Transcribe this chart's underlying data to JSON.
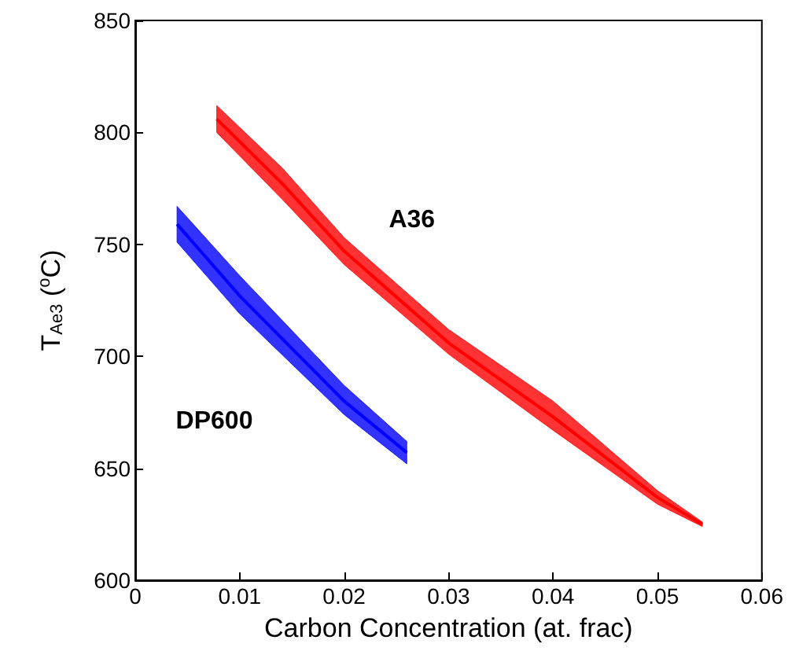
{
  "chart_data": {
    "type": "line",
    "xlabel": "Carbon Concentration (at. frac)",
    "ylabel": "T$_{Ae3}$ ($^{o}$C)",
    "xlim": [
      0,
      0.06
    ],
    "xticks": [
      0,
      0.01,
      0.02,
      0.03,
      0.04,
      0.05,
      0.06
    ],
    "ylim": [
      600,
      850
    ],
    "yticks": [
      600,
      650,
      700,
      750,
      800,
      850
    ],
    "grid": false,
    "legend": false,
    "marker": "none",
    "line_style": "solid",
    "series": [
      {
        "name": "A36",
        "color": "#ff0000",
        "x": [
          0.0078,
          0.0141,
          0.02,
          0.03,
          0.04,
          0.05,
          0.0543
        ],
        "values": [
          806,
          777,
          747,
          706,
          673,
          637,
          625
        ],
        "lower": [
          800,
          770,
          741,
          701,
          667,
          634,
          624
        ],
        "upper": [
          812,
          784,
          753,
          712,
          680,
          640,
          626
        ]
      },
      {
        "name": "DP600",
        "color": "#0000ff",
        "x": [
          0.004,
          0.01,
          0.02,
          0.026
        ],
        "values": [
          759,
          727,
          680,
          657
        ],
        "lower": [
          751,
          719,
          674,
          652
        ],
        "upper": [
          767,
          736,
          687,
          662
        ]
      }
    ]
  }
}
